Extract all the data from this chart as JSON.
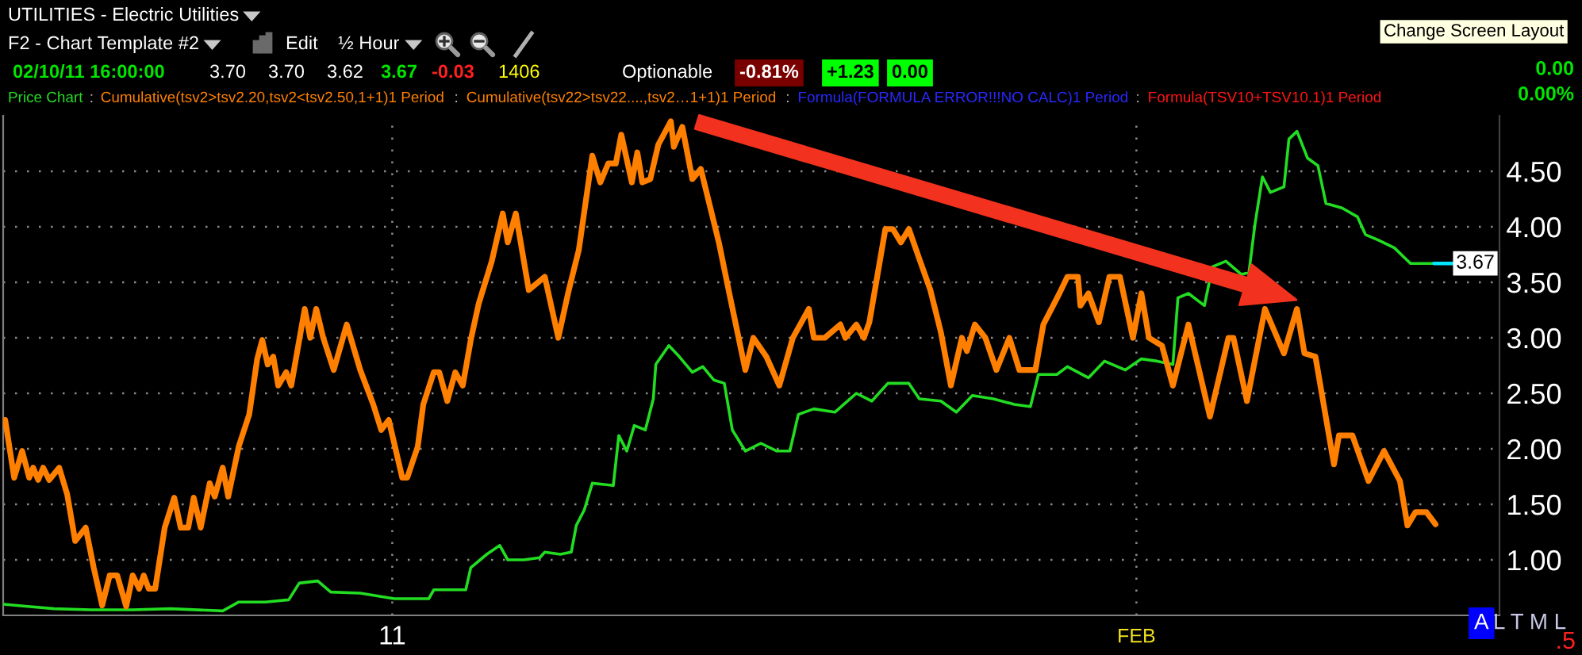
{
  "chart_data": {
    "type": "line",
    "title": "UTILITIES - Electric Utilities",
    "subtitle": "F2 - Chart Template #2",
    "annotations": [
      "Edit",
      "½ Hour",
      "02/10/11 16:00:00",
      "3.70",
      "3.70",
      "3.62",
      "3.67",
      "-0.03",
      "1406",
      "Optionable",
      "-0.81%",
      "+1.23",
      "0.00",
      "0.00",
      "0.00%",
      "Change Screen Layout",
      "A",
      "L T M L",
      ".5",
      ":",
      ":",
      "Cumulative(tsv22>tsv22....,tsv2…1+1)1 Period",
      ":",
      "Formula(FORMULA ERROR!!!NO CALC)1 Period",
      ":",
      "Formula(TSV10+TSV10.1)1 Period",
      {
        "text": "3.67",
        "x": "2011-02-13T09:30",
        "y": 3.67
      }
    ],
    "xlim": [
      "2010-12-15T19:00",
      "2011-02-16T03:00"
    ],
    "ylim": [
      0.5,
      5.0
    ],
    "xticks": [
      {
        "value": "2011",
        "label": "11"
      },
      {
        "value": "2011-02",
        "label": "FEB"
      }
    ],
    "yticks": [
      {
        "value": 1.0,
        "label": "1.00"
      },
      {
        "value": 1.5,
        "label": "1.50"
      },
      {
        "value": 2.0,
        "label": "2.00"
      },
      {
        "value": 2.5,
        "label": "2.50"
      },
      {
        "value": 3.0,
        "label": "3.00"
      },
      {
        "value": 3.5,
        "label": "3.50"
      },
      {
        "value": 4.0,
        "label": "4.00"
      },
      {
        "value": 4.5,
        "label": "4.50"
      }
    ],
    "grid": true,
    "legend": "top left",
    "series": [
      {
        "name": "Price Chart",
        "color": "#22dd22",
        "x": [
          "2010-12-15T19:30",
          "2010-12-16T19:30",
          "2010-12-17T22:00",
          "2010-12-19T10:30",
          "2010-12-21T04:30",
          "2010-12-22T18:00",
          "2010-12-24T22:30",
          "2010-12-25T14:30",
          "2010-12-26T17:00",
          "2010-12-27T16:30",
          "2010-12-28T03:00",
          "2010-12-28T21:30",
          "2010-12-29T10:30",
          "2010-12-30T16:00",
          "2011-01-01T02:00",
          "2011-01-02T12:30",
          "2011-01-02T17:30",
          "2011-01-04T01:30",
          "2011-01-04T06:30",
          "2011-01-04T22:30",
          "2011-01-05T11:30",
          "2011-01-05T19:30",
          "2011-01-06T11:30",
          "2011-01-07T03:30",
          "2011-01-07T08:30",
          "2011-01-08T00:00",
          "2011-01-08T11:00",
          "2011-01-08T16:00",
          "2011-01-09T00:00",
          "2011-01-09T08:00",
          "2011-01-10T05:00",
          "2011-01-10T10:30",
          "2011-01-10T18:30",
          "2011-01-11T02:00",
          "2011-01-11T13:00",
          "2011-01-11T21:00",
          "2011-01-11T23:30",
          "2011-01-12T12:30",
          "2011-01-12T23:00",
          "2011-01-13T12:00",
          "2011-01-13T22:30",
          "2011-01-14T09:30",
          "2011-01-14T20:00",
          "2011-01-15T04:00",
          "2011-01-15T17:00",
          "2011-01-16T08:30",
          "2011-01-17T00:30",
          "2011-01-17T13:30",
          "2011-01-17T22:00",
          "2011-01-18T13:30",
          "2011-01-19T10:30",
          "2011-01-20T08:00",
          "2011-01-20T23:30",
          "2011-01-21T15:30",
          "2011-01-22T12:30",
          "2011-01-22T23:00",
          "2011-01-23T20:30",
          "2011-01-24T12:00",
          "2011-01-25T04:00",
          "2011-01-26T01:00",
          "2011-01-26T22:00",
          "2011-01-27T14:00",
          "2011-01-27T22:00",
          "2011-01-28T16:30",
          "2011-01-29T03:00",
          "2011-01-30T00:00",
          "2011-01-30T16:00",
          "2011-01-31T13:00",
          "2011-02-01T05:00",
          "2011-02-01T20:30",
          "2011-02-02T12:30",
          "2011-02-02T17:30",
          "2011-02-03T04:00",
          "2011-02-03T20:00",
          "2011-02-04T04:00",
          "2011-02-04T17:30",
          "2011-02-05T09:00",
          "2011-02-05T16:30",
          "2011-02-05T22:30",
          "2011-02-06T06:00",
          "2011-02-06T14:00",
          "2011-02-07T03:30",
          "2011-02-07T08:30",
          "2011-02-07T16:30",
          "2011-02-08T03:00",
          "2011-02-08T13:30",
          "2011-02-08T21:30",
          "2011-02-09T13:30",
          "2011-02-10T05:00",
          "2011-02-10T13:00",
          "2011-02-11T02:00",
          "2011-02-11T18:00",
          "2011-02-12T10:00",
          "2011-02-13T02:00",
          "2011-02-13T09:30"
        ],
        "values": [
          0.6,
          0.58,
          0.56,
          0.55,
          0.55,
          0.56,
          0.54,
          0.62,
          0.62,
          0.64,
          0.79,
          0.81,
          0.71,
          0.7,
          0.65,
          0.65,
          0.73,
          0.73,
          0.93,
          1.05,
          1.13,
          1.0,
          1.0,
          1.02,
          1.07,
          1.05,
          1.07,
          1.31,
          1.45,
          1.69,
          1.67,
          2.12,
          1.98,
          2.21,
          2.17,
          2.45,
          2.76,
          2.93,
          2.83,
          2.69,
          2.74,
          2.62,
          2.59,
          2.17,
          1.98,
          2.05,
          1.98,
          1.98,
          2.31,
          2.36,
          2.33,
          2.5,
          2.43,
          2.59,
          2.59,
          2.45,
          2.43,
          2.33,
          2.48,
          2.45,
          2.4,
          2.38,
          2.67,
          2.67,
          2.74,
          2.64,
          2.79,
          2.71,
          2.81,
          2.79,
          2.76,
          3.36,
          3.4,
          3.29,
          3.64,
          3.69,
          3.57,
          3.59,
          4.02,
          4.45,
          4.31,
          4.36,
          4.79,
          4.86,
          4.62,
          4.55,
          4.21,
          4.17,
          4.09,
          3.93,
          3.88,
          3.81,
          3.67,
          3.67,
          3.67
        ]
      },
      {
        "name": "Cumulative(tsv2>tsv2.20,tsv2<tsv2.50,1+1)1 Period",
        "color": "#ff8000",
        "x": [
          "2010-12-15T21:00",
          "2010-12-16T06:00",
          "2010-12-16T14:00",
          "2010-12-16T21:00",
          "2010-12-17T01:00",
          "2010-12-17T06:00",
          "2010-12-17T11:00",
          "2010-12-17T17:00",
          "2010-12-18T03:00",
          "2010-12-18T11:00",
          "2010-12-18T19:00",
          "2010-12-19T05:30",
          "2010-12-19T13:30",
          "2010-12-19T22:00",
          "2010-12-20T05:30",
          "2010-12-20T13:00",
          "2010-12-20T22:00",
          "2010-12-21T04:30",
          "2010-12-21T11:00",
          "2010-12-21T15:30",
          "2010-12-21T20:30",
          "2010-12-22T03:00",
          "2010-12-22T12:30",
          "2010-12-22T22:00",
          "2010-12-23T04:30",
          "2010-12-23T12:00",
          "2010-12-23T17:30",
          "2010-12-24T00:30",
          "2010-12-24T09:30",
          "2010-12-24T14:30",
          "2010-12-24T22:30",
          "2010-12-25T04:00",
          "2010-12-25T14:30",
          "2010-12-26T01:00",
          "2010-12-26T09:00",
          "2010-12-26T14:00",
          "2010-12-26T19:30",
          "2010-12-27T01:00",
          "2010-12-27T06:00",
          "2010-12-27T14:00",
          "2010-12-27T19:00",
          "2010-12-28T08:30",
          "2010-12-28T14:00",
          "2010-12-28T20:00",
          "2010-12-29T03:00",
          "2010-12-29T13:30",
          "2010-12-30T02:30",
          "2010-12-30T16:00",
          "2010-12-31T05:00",
          "2010-12-31T13:00",
          "2010-12-31T20:30",
          "2011-01-01T10:00",
          "2011-01-01T15:00",
          "2011-01-02T01:30",
          "2011-01-02T07:00",
          "2011-01-02T17:30",
          "2011-01-02T23:00",
          "2011-01-03T07:00",
          "2011-01-03T15:00",
          "2011-01-03T22:30",
          "2011-01-04T06:30",
          "2011-01-04T14:30",
          "2011-01-05T03:30",
          "2011-01-05T14:30",
          "2011-01-05T19:30",
          "2011-01-06T03:30",
          "2011-01-06T16:30",
          "2011-01-07T08:30",
          "2011-01-07T22:00",
          "2011-01-08T08:30",
          "2011-01-08T18:30",
          "2011-01-09T08:00",
          "2011-01-09T16:00",
          "2011-01-10T00:00",
          "2011-01-10T07:30",
          "2011-01-10T13:00",
          "2011-01-10T23:30",
          "2011-01-11T05:00",
          "2011-01-11T10:00",
          "2011-01-11T18:00",
          "2011-01-12T02:00",
          "2011-01-12T14:30",
          "2011-01-12T17:30",
          "2011-01-13T02:00",
          "2011-01-13T12:00",
          "2011-01-13T20:30",
          "2011-01-14T14:30",
          "2011-01-15T01:00",
          "2011-01-15T17:00",
          "2011-01-16T01:00",
          "2011-01-16T14:00",
          "2011-01-17T03:00",
          "2011-01-17T16:30",
          "2011-01-18T08:30",
          "2011-01-18T13:30",
          "2011-01-19T00:30",
          "2011-01-19T16:00",
          "2011-01-19T21:00",
          "2011-01-20T08:00",
          "2011-01-20T15:30",
          "2011-01-20T21:00",
          "2011-01-21T13:00",
          "2011-01-21T20:30",
          "2011-01-22T04:30",
          "2011-01-22T12:30",
          "2011-01-22T23:00",
          "2011-01-23T10:00",
          "2011-01-23T20:30",
          "2011-01-24T06:30",
          "2011-01-24T17:30",
          "2011-01-24T22:30",
          "2011-01-25T06:30",
          "2011-01-25T17:00",
          "2011-01-26T04:00",
          "2011-01-26T17:00",
          "2011-01-27T03:00",
          "2011-01-27T19:00",
          "2011-01-28T03:00",
          "2011-01-28T11:00",
          "2011-01-28T19:00",
          "2011-01-29T03:00",
          "2011-01-29T13:30",
          "2011-01-29T16:00",
          "2011-01-30T00:00",
          "2011-01-30T10:30",
          "2011-01-30T21:00",
          "2011-01-31T07:30",
          "2011-01-31T20:30",
          "2011-02-01T05:00",
          "2011-02-01T12:30",
          "2011-02-02T01:30",
          "2011-02-02T12:30",
          "2011-02-03T04:00",
          "2011-02-04T01:30",
          "2011-02-04T20:00",
          "2011-02-05T01:00",
          "2011-02-05T14:30",
          "2011-02-06T08:30",
          "2011-02-07T03:30",
          "2011-02-07T16:30",
          "2011-02-08T00:00",
          "2011-02-08T11:00",
          "2011-02-09T05:30",
          "2011-02-09T10:30",
          "2011-02-10T00:00",
          "2011-02-10T16:00",
          "2011-02-11T07:30",
          "2011-02-11T23:30",
          "2011-02-12T07:00",
          "2011-02-12T15:00",
          "2011-02-13T02:00",
          "2011-02-13T11:00"
        ],
        "values": [
          2.26,
          1.74,
          1.98,
          1.74,
          1.83,
          1.72,
          1.83,
          1.72,
          1.83,
          1.59,
          1.17,
          1.29,
          0.93,
          0.59,
          0.86,
          0.86,
          0.58,
          0.86,
          0.74,
          0.86,
          0.74,
          0.74,
          1.29,
          1.56,
          1.29,
          1.29,
          1.56,
          1.29,
          1.69,
          1.57,
          1.83,
          1.57,
          2.02,
          2.31,
          2.81,
          2.98,
          2.76,
          2.83,
          2.57,
          2.69,
          2.57,
          3.26,
          3.0,
          3.26,
          3.0,
          2.71,
          3.12,
          2.71,
          2.4,
          2.17,
          2.26,
          1.74,
          1.74,
          2.02,
          2.4,
          2.69,
          2.69,
          2.43,
          2.69,
          2.57,
          2.98,
          3.31,
          3.69,
          4.12,
          3.86,
          4.12,
          3.43,
          3.55,
          3.0,
          3.43,
          3.79,
          4.64,
          4.4,
          4.57,
          4.57,
          4.83,
          4.4,
          4.67,
          4.4,
          4.43,
          4.74,
          4.95,
          4.72,
          4.9,
          4.43,
          4.52,
          3.86,
          3.4,
          2.71,
          3.0,
          2.83,
          2.57,
          3.0,
          3.26,
          3.0,
          3.0,
          3.12,
          3.0,
          3.12,
          3.0,
          3.14,
          3.98,
          3.98,
          3.86,
          3.98,
          3.71,
          3.43,
          3.05,
          2.57,
          3.0,
          2.88,
          3.12,
          3.0,
          2.71,
          3.0,
          2.71,
          2.71,
          3.12,
          3.26,
          3.4,
          3.55,
          3.55,
          3.29,
          3.4,
          3.14,
          3.55,
          3.55,
          3.0,
          3.4,
          3.0,
          2.93,
          2.57,
          3.12,
          2.29,
          3.0,
          3.0,
          2.43,
          3.26,
          2.86,
          3.26,
          2.86,
          2.83,
          1.86,
          2.12,
          2.12,
          1.71,
          1.98,
          1.71,
          1.31,
          1.43,
          1.43,
          1.32
        ]
      }
    ]
  }
}
